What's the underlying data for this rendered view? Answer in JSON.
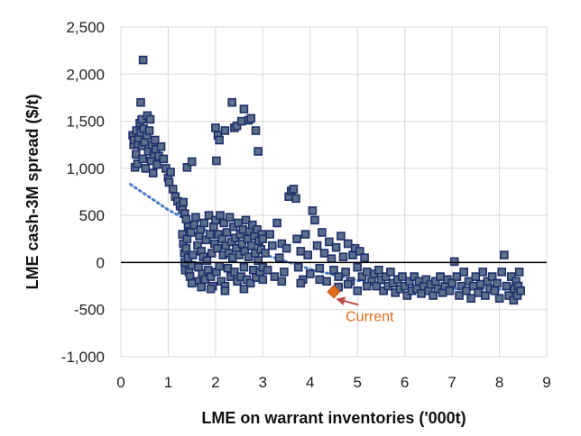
{
  "chart_data": {
    "type": "scatter",
    "xlabel": "LME on warrant inventories ('000t)",
    "ylabel": "LME cash-3M spread ($/t)",
    "xlim": [
      0,
      9
    ],
    "ylim": [
      -1000,
      2500
    ],
    "x_ticks": [
      0,
      1,
      2,
      3,
      4,
      5,
      6,
      7,
      8,
      9
    ],
    "y_ticks": [
      -1000,
      -500,
      0,
      500,
      1000,
      1500,
      2000,
      2500
    ],
    "x_tick_labels": [
      "0",
      "1",
      "2",
      "3",
      "4",
      "5",
      "6",
      "7",
      "8",
      "9"
    ],
    "y_tick_labels": [
      "-1,000",
      "-500",
      "0",
      "500",
      "1,000",
      "1,500",
      "2,000",
      "2,500"
    ],
    "grid": "both",
    "zero_line": true,
    "colors": {
      "marker_fill": "#5b6f8a",
      "marker_edge": "#1f2f6b",
      "trendline": "#4a7cc4",
      "highlight": "#e26b1d",
      "annotation_text": "#e26b1d",
      "annotation_arrow": "#c0504d"
    },
    "trendline": {
      "style": "dotted",
      "points": [
        [
          0.2,
          830
        ],
        [
          1.0,
          560
        ],
        [
          2.0,
          290
        ],
        [
          3.0,
          90
        ],
        [
          4.0,
          -70
        ],
        [
          5.0,
          -190
        ],
        [
          6.0,
          -260
        ],
        [
          7.0,
          -280
        ],
        [
          8.0,
          -285
        ],
        [
          8.4,
          -285
        ]
      ]
    },
    "highlight_point": {
      "x": 4.5,
      "y": -310,
      "label": "Current"
    },
    "series": [
      {
        "points": [
          [
            0.25,
            1350
          ],
          [
            0.27,
            1250
          ],
          [
            0.28,
            1300
          ],
          [
            0.3,
            1010
          ],
          [
            0.32,
            1150
          ],
          [
            0.33,
            1400
          ],
          [
            0.35,
            1050
          ],
          [
            0.36,
            1260
          ],
          [
            0.38,
            1320
          ],
          [
            0.4,
            1480
          ],
          [
            0.42,
            1700
          ],
          [
            0.42,
            1380
          ],
          [
            0.44,
            1520
          ],
          [
            0.45,
            1240
          ],
          [
            0.46,
            1100
          ],
          [
            0.47,
            2150
          ],
          [
            0.48,
            1420
          ],
          [
            0.5,
            1280
          ],
          [
            0.52,
            1000
          ],
          [
            0.55,
            1350
          ],
          [
            0.56,
            1560
          ],
          [
            0.58,
            1180
          ],
          [
            0.6,
            1400
          ],
          [
            0.62,
            1520
          ],
          [
            0.64,
            1080
          ],
          [
            0.66,
            1250
          ],
          [
            0.68,
            950
          ],
          [
            0.7,
            1150
          ],
          [
            0.72,
            1300
          ],
          [
            0.74,
            1200
          ],
          [
            0.76,
            1040
          ],
          [
            0.8,
            1130
          ],
          [
            0.85,
            1230
          ],
          [
            0.9,
            1100
          ],
          [
            0.95,
            1000
          ],
          [
            1.0,
            900
          ],
          [
            1.02,
            850
          ],
          [
            1.05,
            960
          ],
          [
            1.1,
            780
          ],
          [
            1.15,
            700
          ],
          [
            1.2,
            650
          ],
          [
            1.25,
            600
          ],
          [
            1.3,
            560
          ],
          [
            1.32,
            640
          ],
          [
            1.35,
            520
          ],
          [
            1.38,
            460
          ],
          [
            1.4,
            1010
          ],
          [
            1.42,
            380
          ],
          [
            1.45,
            330
          ],
          [
            1.5,
            1070
          ],
          [
            1.3,
            300
          ],
          [
            1.32,
            200
          ],
          [
            1.34,
            100
          ],
          [
            1.35,
            0
          ],
          [
            1.36,
            -80
          ],
          [
            1.38,
            150
          ],
          [
            1.4,
            250
          ],
          [
            1.42,
            50
          ],
          [
            1.44,
            -100
          ],
          [
            1.46,
            -150
          ],
          [
            1.48,
            320
          ],
          [
            1.5,
            -30
          ],
          [
            1.52,
            80
          ],
          [
            1.55,
            400
          ],
          [
            1.58,
            480
          ],
          [
            1.6,
            -200
          ],
          [
            1.62,
            180
          ],
          [
            1.64,
            -50
          ],
          [
            1.66,
            280
          ],
          [
            1.68,
            350
          ],
          [
            1.7,
            120
          ],
          [
            1.72,
            -120
          ],
          [
            1.74,
            60
          ],
          [
            1.76,
            420
          ],
          [
            1.78,
            -180
          ],
          [
            1.8,
            240
          ],
          [
            1.82,
            20
          ],
          [
            1.84,
            -80
          ],
          [
            1.86,
            500
          ],
          [
            1.88,
            300
          ],
          [
            1.9,
            -150
          ],
          [
            1.92,
            100
          ],
          [
            1.94,
            -250
          ],
          [
            1.96,
            380
          ],
          [
            1.98,
            200
          ],
          [
            2.0,
            450
          ],
          [
            2.02,
            -100
          ],
          [
            2.04,
            150
          ],
          [
            2.06,
            300
          ],
          [
            2.08,
            -40
          ],
          [
            2.1,
            500
          ],
          [
            2.12,
            -200
          ],
          [
            2.14,
            250
          ],
          [
            2.16,
            80
          ],
          [
            2.18,
            420
          ],
          [
            2.2,
            -250
          ],
          [
            2.22,
            180
          ],
          [
            2.24,
            320
          ],
          [
            2.26,
            -60
          ],
          [
            2.28,
            100
          ],
          [
            2.3,
            480
          ],
          [
            2.32,
            -150
          ],
          [
            2.34,
            220
          ],
          [
            2.36,
            50
          ],
          [
            2.38,
            380
          ],
          [
            2.4,
            -100
          ],
          [
            2.42,
            260
          ],
          [
            2.44,
            150
          ],
          [
            2.46,
            -200
          ],
          [
            2.48,
            420
          ],
          [
            2.5,
            80
          ],
          [
            2.52,
            300
          ],
          [
            2.54,
            -150
          ],
          [
            2.56,
            200
          ],
          [
            2.58,
            350
          ],
          [
            2.6,
            -50
          ],
          [
            2.62,
            120
          ],
          [
            2.64,
            450
          ],
          [
            2.66,
            -180
          ],
          [
            2.68,
            250
          ],
          [
            2.7,
            60
          ],
          [
            2.72,
            330
          ],
          [
            2.74,
            -220
          ],
          [
            2.76,
            180
          ],
          [
            2.78,
            400
          ],
          [
            2.8,
            -80
          ],
          [
            2.82,
            280
          ],
          [
            2.84,
            100
          ],
          [
            2.86,
            -160
          ],
          [
            2.88,
            350
          ],
          [
            2.9,
            20
          ],
          [
            2.92,
            230
          ],
          [
            2.94,
            -100
          ],
          [
            2.96,
            140
          ],
          [
            2.98,
            300
          ],
          [
            3.0,
            -50
          ],
          [
            2.0,
            1430
          ],
          [
            2.02,
            1080
          ],
          [
            2.05,
            1350
          ],
          [
            2.08,
            1300
          ],
          [
            2.35,
            1700
          ],
          [
            2.4,
            1430
          ],
          [
            2.45,
            1450
          ],
          [
            2.55,
            1500
          ],
          [
            2.6,
            1630
          ],
          [
            2.7,
            1510
          ],
          [
            2.75,
            1530
          ],
          [
            2.85,
            1400
          ],
          [
            2.9,
            1180
          ],
          [
            2.2,
            1400
          ],
          [
            3.0,
            250
          ],
          [
            3.05,
            100
          ],
          [
            3.1,
            -80
          ],
          [
            3.15,
            300
          ],
          [
            3.2,
            180
          ],
          [
            3.25,
            -150
          ],
          [
            3.3,
            420
          ],
          [
            3.35,
            50
          ],
          [
            3.4,
            200
          ],
          [
            3.45,
            -100
          ],
          [
            3.5,
            150
          ],
          [
            3.55,
            700
          ],
          [
            3.6,
            760
          ],
          [
            3.65,
            780
          ],
          [
            3.7,
            680
          ],
          [
            3.72,
            250
          ],
          [
            3.75,
            -50
          ],
          [
            3.8,
            120
          ],
          [
            3.85,
            -180
          ],
          [
            3.9,
            300
          ],
          [
            3.95,
            80
          ],
          [
            4.0,
            -120
          ],
          [
            4.05,
            550
          ],
          [
            4.1,
            450
          ],
          [
            4.15,
            180
          ],
          [
            4.2,
            -60
          ],
          [
            4.25,
            320
          ],
          [
            4.3,
            100
          ],
          [
            4.35,
            -200
          ],
          [
            4.4,
            220
          ],
          [
            4.45,
            40
          ],
          [
            4.5,
            -80
          ],
          [
            4.55,
            160
          ],
          [
            4.6,
            -150
          ],
          [
            4.65,
            280
          ],
          [
            4.7,
            60
          ],
          [
            4.75,
            -100
          ],
          [
            4.8,
            200
          ],
          [
            4.85,
            -200
          ],
          [
            4.9,
            80
          ],
          [
            4.95,
            150
          ],
          [
            5.0,
            -50
          ],
          [
            5.05,
            120
          ],
          [
            5.1,
            -150
          ],
          [
            5.15,
            50
          ],
          [
            5.2,
            -100
          ],
          [
            5.3,
            -200
          ],
          [
            5.35,
            -120
          ],
          [
            5.4,
            -250
          ],
          [
            5.45,
            -80
          ],
          [
            5.5,
            -180
          ],
          [
            5.55,
            -300
          ],
          [
            5.6,
            -150
          ],
          [
            5.65,
            -250
          ],
          [
            5.7,
            -100
          ],
          [
            5.75,
            -220
          ],
          [
            5.8,
            -320
          ],
          [
            5.85,
            -180
          ],
          [
            5.9,
            -280
          ],
          [
            5.95,
            -150
          ],
          [
            6.0,
            -250
          ],
          [
            6.05,
            -350
          ],
          [
            6.1,
            -200
          ],
          [
            6.15,
            -300
          ],
          [
            6.2,
            -150
          ],
          [
            6.25,
            -280
          ],
          [
            6.3,
            -200
          ],
          [
            6.35,
            -330
          ],
          [
            6.4,
            -250
          ],
          [
            6.45,
            -180
          ],
          [
            6.5,
            -300
          ],
          [
            6.55,
            -230
          ],
          [
            6.6,
            -350
          ],
          [
            6.65,
            -200
          ],
          [
            6.7,
            -280
          ],
          [
            6.75,
            -150
          ],
          [
            6.8,
            -320
          ],
          [
            6.85,
            -250
          ],
          [
            6.9,
            -180
          ],
          [
            6.95,
            -300
          ],
          [
            7.0,
            -220
          ],
          [
            7.05,
            10
          ],
          [
            7.1,
            -150
          ],
          [
            7.15,
            -350
          ],
          [
            7.2,
            -250
          ],
          [
            7.25,
            -100
          ],
          [
            7.3,
            -300
          ],
          [
            7.35,
            -200
          ],
          [
            7.4,
            -380
          ],
          [
            7.45,
            -250
          ],
          [
            7.5,
            -150
          ],
          [
            7.55,
            -320
          ],
          [
            7.6,
            -230
          ],
          [
            7.65,
            -100
          ],
          [
            7.7,
            -350
          ],
          [
            7.75,
            -200
          ],
          [
            7.8,
            -280
          ],
          [
            7.85,
            -150
          ],
          [
            7.9,
            -300
          ],
          [
            7.95,
            -220
          ],
          [
            8.0,
            -380
          ],
          [
            8.05,
            -100
          ],
          [
            8.1,
            80
          ],
          [
            8.15,
            -250
          ],
          [
            8.2,
            -350
          ],
          [
            8.25,
            -150
          ],
          [
            8.3,
            -400
          ],
          [
            8.32,
            -280
          ],
          [
            8.35,
            -200
          ],
          [
            8.38,
            -350
          ],
          [
            8.4,
            -250
          ],
          [
            8.42,
            -100
          ],
          [
            8.45,
            -300
          ],
          [
            5.0,
            -300
          ],
          [
            5.2,
            -250
          ],
          [
            4.8,
            -230
          ],
          [
            4.6,
            -260
          ],
          [
            4.2,
            -180
          ],
          [
            3.8,
            -220
          ],
          [
            3.4,
            -200
          ],
          [
            3.0,
            -180
          ],
          [
            2.6,
            -280
          ],
          [
            2.2,
            -300
          ],
          [
            1.9,
            -280
          ],
          [
            1.7,
            -260
          ],
          [
            1.5,
            -220
          ]
        ]
      }
    ],
    "annotations": [
      {
        "text": "Current",
        "x": 4.75,
        "y": -620,
        "arrow_to": [
          4.58,
          -390
        ]
      }
    ]
  }
}
